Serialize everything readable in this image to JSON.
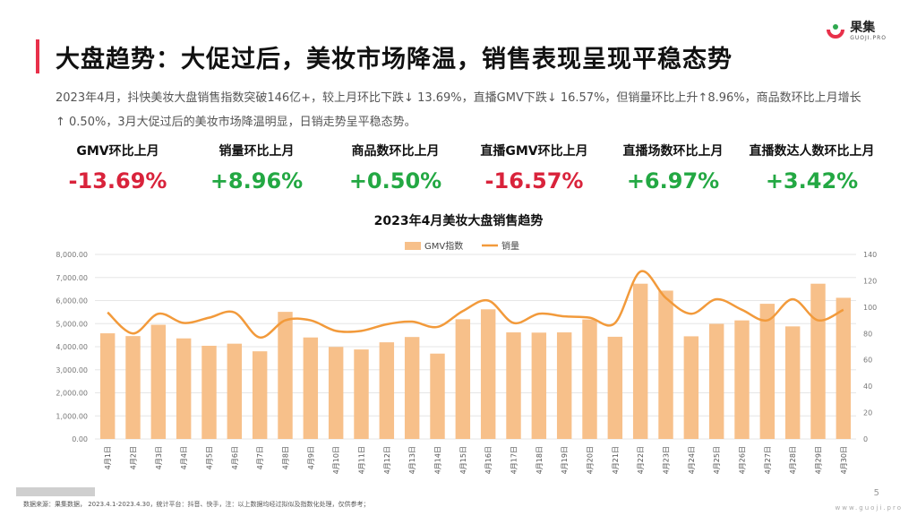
{
  "header": {
    "title": "大盘趋势：大促过后，美妆市场降温，销售表现呈现平稳态势",
    "logo_cn": "果集",
    "logo_en": "GUOJI.PRO"
  },
  "description": "2023年4月，抖快美妆大盘销售指数突破146亿+，较上月环比下跌↓ 13.69%，直播GMV下跌↓ 16.57%，但销量环比上升↑8.96%，商品数环比上月增长↑ 0.50%，3月大促过后的美妆市场降温明显，日销走势呈平稳态势。",
  "kpis": [
    {
      "label": "GMV环比上月",
      "value": "-13.69%",
      "trend": "neg"
    },
    {
      "label": "销量环比上月",
      "value": "+8.96%",
      "trend": "pos"
    },
    {
      "label": "商品数环比上月",
      "value": "+0.50%",
      "trend": "pos"
    },
    {
      "label": "直播GMV环比上月",
      "value": "-16.57%",
      "trend": "neg"
    },
    {
      "label": "直播场数环比上月",
      "value": "+6.97%",
      "trend": "pos"
    },
    {
      "label": "直播数达人数环比上月",
      "value": "+3.42%",
      "trend": "pos"
    }
  ],
  "chart_title": "2023年4月美妆大盘销售趋势",
  "chart_data": {
    "type": "bar",
    "categories": [
      "4月1日",
      "4月2日",
      "4月3日",
      "4月4日",
      "4月5日",
      "4月6日",
      "4月7日",
      "4月8日",
      "4月9日",
      "4月10日",
      "4月11日",
      "4月12日",
      "4月13日",
      "4月14日",
      "4月15日",
      "4月16日",
      "4月17日",
      "4月18日",
      "4月19日",
      "4月20日",
      "4月21日",
      "4月22日",
      "4月23日",
      "4月24日",
      "4月25日",
      "4月26日",
      "4月27日",
      "4月28日",
      "4月29日",
      "4月30日"
    ],
    "series": [
      {
        "name": "GMV指数",
        "type": "bar",
        "axis": "left",
        "color": "#f7c08a",
        "values": [
          4580,
          4460,
          4950,
          4360,
          4040,
          4130,
          3800,
          5510,
          4400,
          3990,
          3880,
          4190,
          4420,
          3700,
          5190,
          5620,
          4620,
          4610,
          4620,
          5180,
          4430,
          6730,
          6430,
          4450,
          4990,
          5140,
          5860,
          4880,
          6730,
          6120
        ]
      },
      {
        "name": "销量",
        "type": "line",
        "axis": "right",
        "color": "#f29a3b",
        "values": [
          96,
          80,
          95,
          88,
          92,
          96,
          77,
          90,
          90,
          82,
          82,
          87,
          89,
          85,
          97,
          105,
          88,
          95,
          93,
          92,
          88,
          127,
          107,
          95,
          106,
          98,
          90,
          106,
          90,
          98
        ]
      }
    ],
    "y_left": {
      "min": 0,
      "max": 8000,
      "ticks": [
        "0.00",
        "1,000.00",
        "2,000.00",
        "3,000.00",
        "4,000.00",
        "5,000.00",
        "6,000.00",
        "7,000.00",
        "8,000.00"
      ]
    },
    "y_right": {
      "min": 0,
      "max": 140,
      "ticks": [
        "0",
        "20",
        "40",
        "60",
        "80",
        "100",
        "120",
        "140"
      ]
    },
    "legend_position": "top",
    "grid": true
  },
  "footer": {
    "source": "数据来源：果集数据，  2023.4.1-2023.4.30，统计平台：抖音、快手，注：以上数据均经过拟似及指数化处理，仅供参考；",
    "page": "5",
    "site": "www.guoji.pro"
  }
}
